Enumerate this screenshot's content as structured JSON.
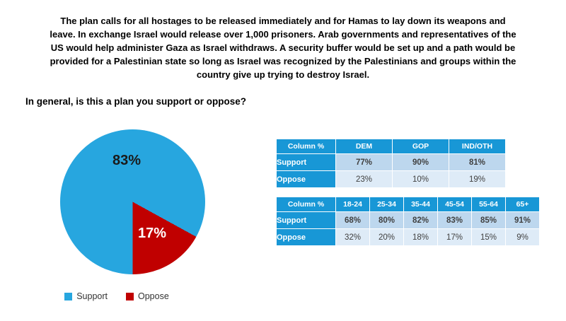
{
  "intro": "The plan calls for all hostages to be released immediately and for Hamas to lay down its weapons and leave. In exchange Israel would release over 1,000 prisoners. Arab governments and representatives of the US would help administer Gaza as Israel withdraws. A security buffer would be set up and a path would be provided for a Palestinian state so long as Israel was recognized by the Palestinians and groups within the country give up trying to destroy Israel.",
  "question": "In general, is this a plan you support or oppose?",
  "chart_data": [
    {
      "type": "pie",
      "labels": [
        "Support",
        "Oppose"
      ],
      "values": [
        83,
        17
      ],
      "data_labels": [
        "83%",
        "17%"
      ],
      "colors": [
        "#27A6DF",
        "#C00000"
      ],
      "legend_position": "bottom"
    },
    {
      "type": "table",
      "corner_label": "Column %",
      "columns": [
        "DEM",
        "GOP",
        "IND/OTH"
      ],
      "rows": [
        {
          "label": "Support",
          "values": [
            "77%",
            "90%",
            "81%"
          ]
        },
        {
          "label": "Oppose",
          "values": [
            "23%",
            "10%",
            "19%"
          ]
        }
      ]
    },
    {
      "type": "table",
      "corner_label": "Column %",
      "columns": [
        "18-24",
        "25-34",
        "35-44",
        "45-54",
        "55-64",
        "65+"
      ],
      "rows": [
        {
          "label": "Support",
          "values": [
            "68%",
            "80%",
            "82%",
            "83%",
            "85%",
            "91%"
          ]
        },
        {
          "label": "Oppose",
          "values": [
            "32%",
            "20%",
            "18%",
            "17%",
            "15%",
            "9%"
          ]
        }
      ]
    }
  ],
  "colors": {
    "pie_support": "#27A6DF",
    "pie_oppose": "#C00000",
    "table_header": "#1897D6",
    "support_cell": "#BDD7EE",
    "oppose_cell": "#DEEBF7"
  }
}
